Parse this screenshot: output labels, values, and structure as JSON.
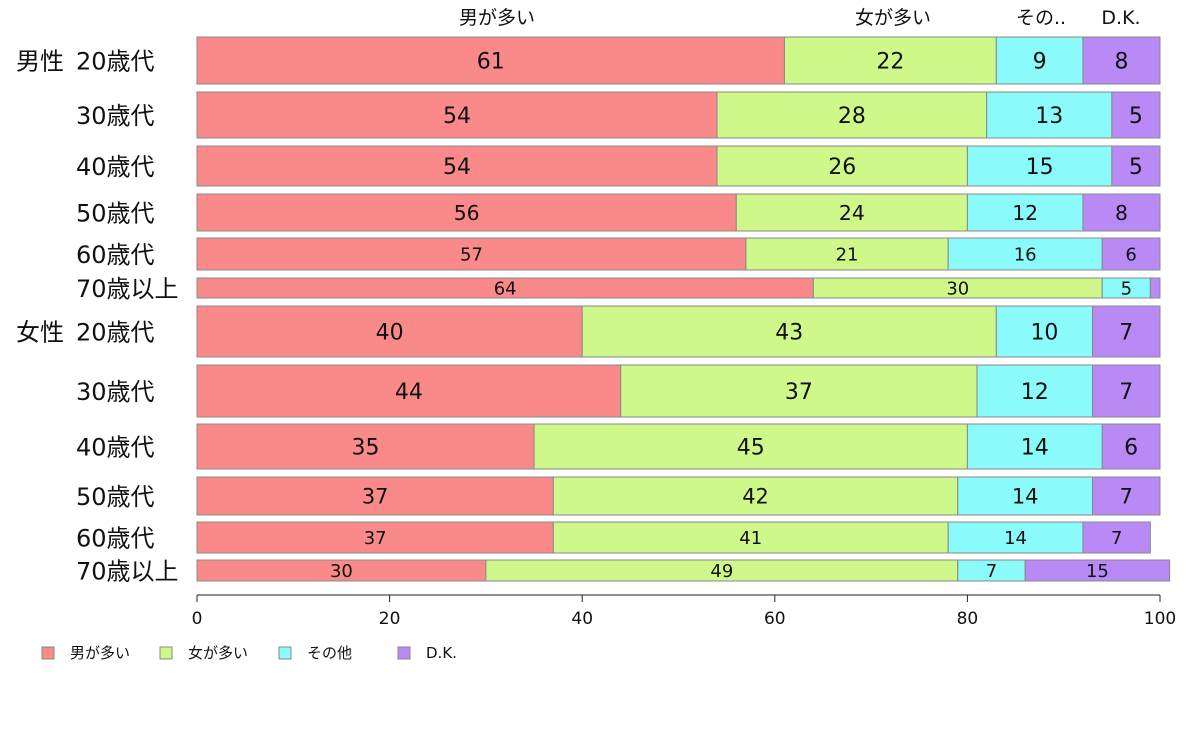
{
  "chart_data": {
    "type": "bar",
    "orientation": "horizontal",
    "stacked": true,
    "rows": [
      {
        "group": "男性",
        "label": "20歳代",
        "values": [
          61,
          22,
          9,
          8
        ]
      },
      {
        "group": "",
        "label": "30歳代",
        "values": [
          54,
          28,
          13,
          5
        ]
      },
      {
        "group": "",
        "label": "40歳代",
        "values": [
          54,
          26,
          15,
          5
        ]
      },
      {
        "group": "",
        "label": "50歳代",
        "values": [
          56,
          24,
          12,
          8
        ]
      },
      {
        "group": "",
        "label": "60歳代",
        "values": [
          57,
          21,
          16,
          6
        ]
      },
      {
        "group": "",
        "label": "70歳以上",
        "values": [
          64,
          30,
          5,
          1
        ]
      },
      {
        "group": "女性",
        "label": "20歳代",
        "values": [
          40,
          43,
          10,
          7
        ]
      },
      {
        "group": "",
        "label": "30歳代",
        "values": [
          44,
          37,
          12,
          7
        ]
      },
      {
        "group": "",
        "label": "40歳代",
        "values": [
          35,
          45,
          14,
          6
        ]
      },
      {
        "group": "",
        "label": "50歳代",
        "values": [
          37,
          42,
          14,
          7
        ]
      },
      {
        "group": "",
        "label": "60歳代",
        "values": [
          37,
          41,
          14,
          7
        ]
      },
      {
        "group": "",
        "label": "70歳以上",
        "values": [
          30,
          49,
          7,
          15
        ]
      }
    ],
    "hidden_value_labels": [
      [
        5,
        3
      ]
    ],
    "series": [
      {
        "name": "男が多い",
        "color": "#fa8a8a"
      },
      {
        "name": "女が多い",
        "color": "#cef98a"
      },
      {
        "name": "その他",
        "color": "#8afafa"
      },
      {
        "name": "D.K.",
        "color": "#b98af5"
      }
    ],
    "top_labels": [
      "男が多い",
      "女が多い",
      "その..",
      "D.K."
    ],
    "xlim": [
      0,
      100
    ],
    "xticks": [
      0,
      20,
      40,
      60,
      80,
      100
    ],
    "grid": false,
    "legend_position": "bottom-left"
  }
}
